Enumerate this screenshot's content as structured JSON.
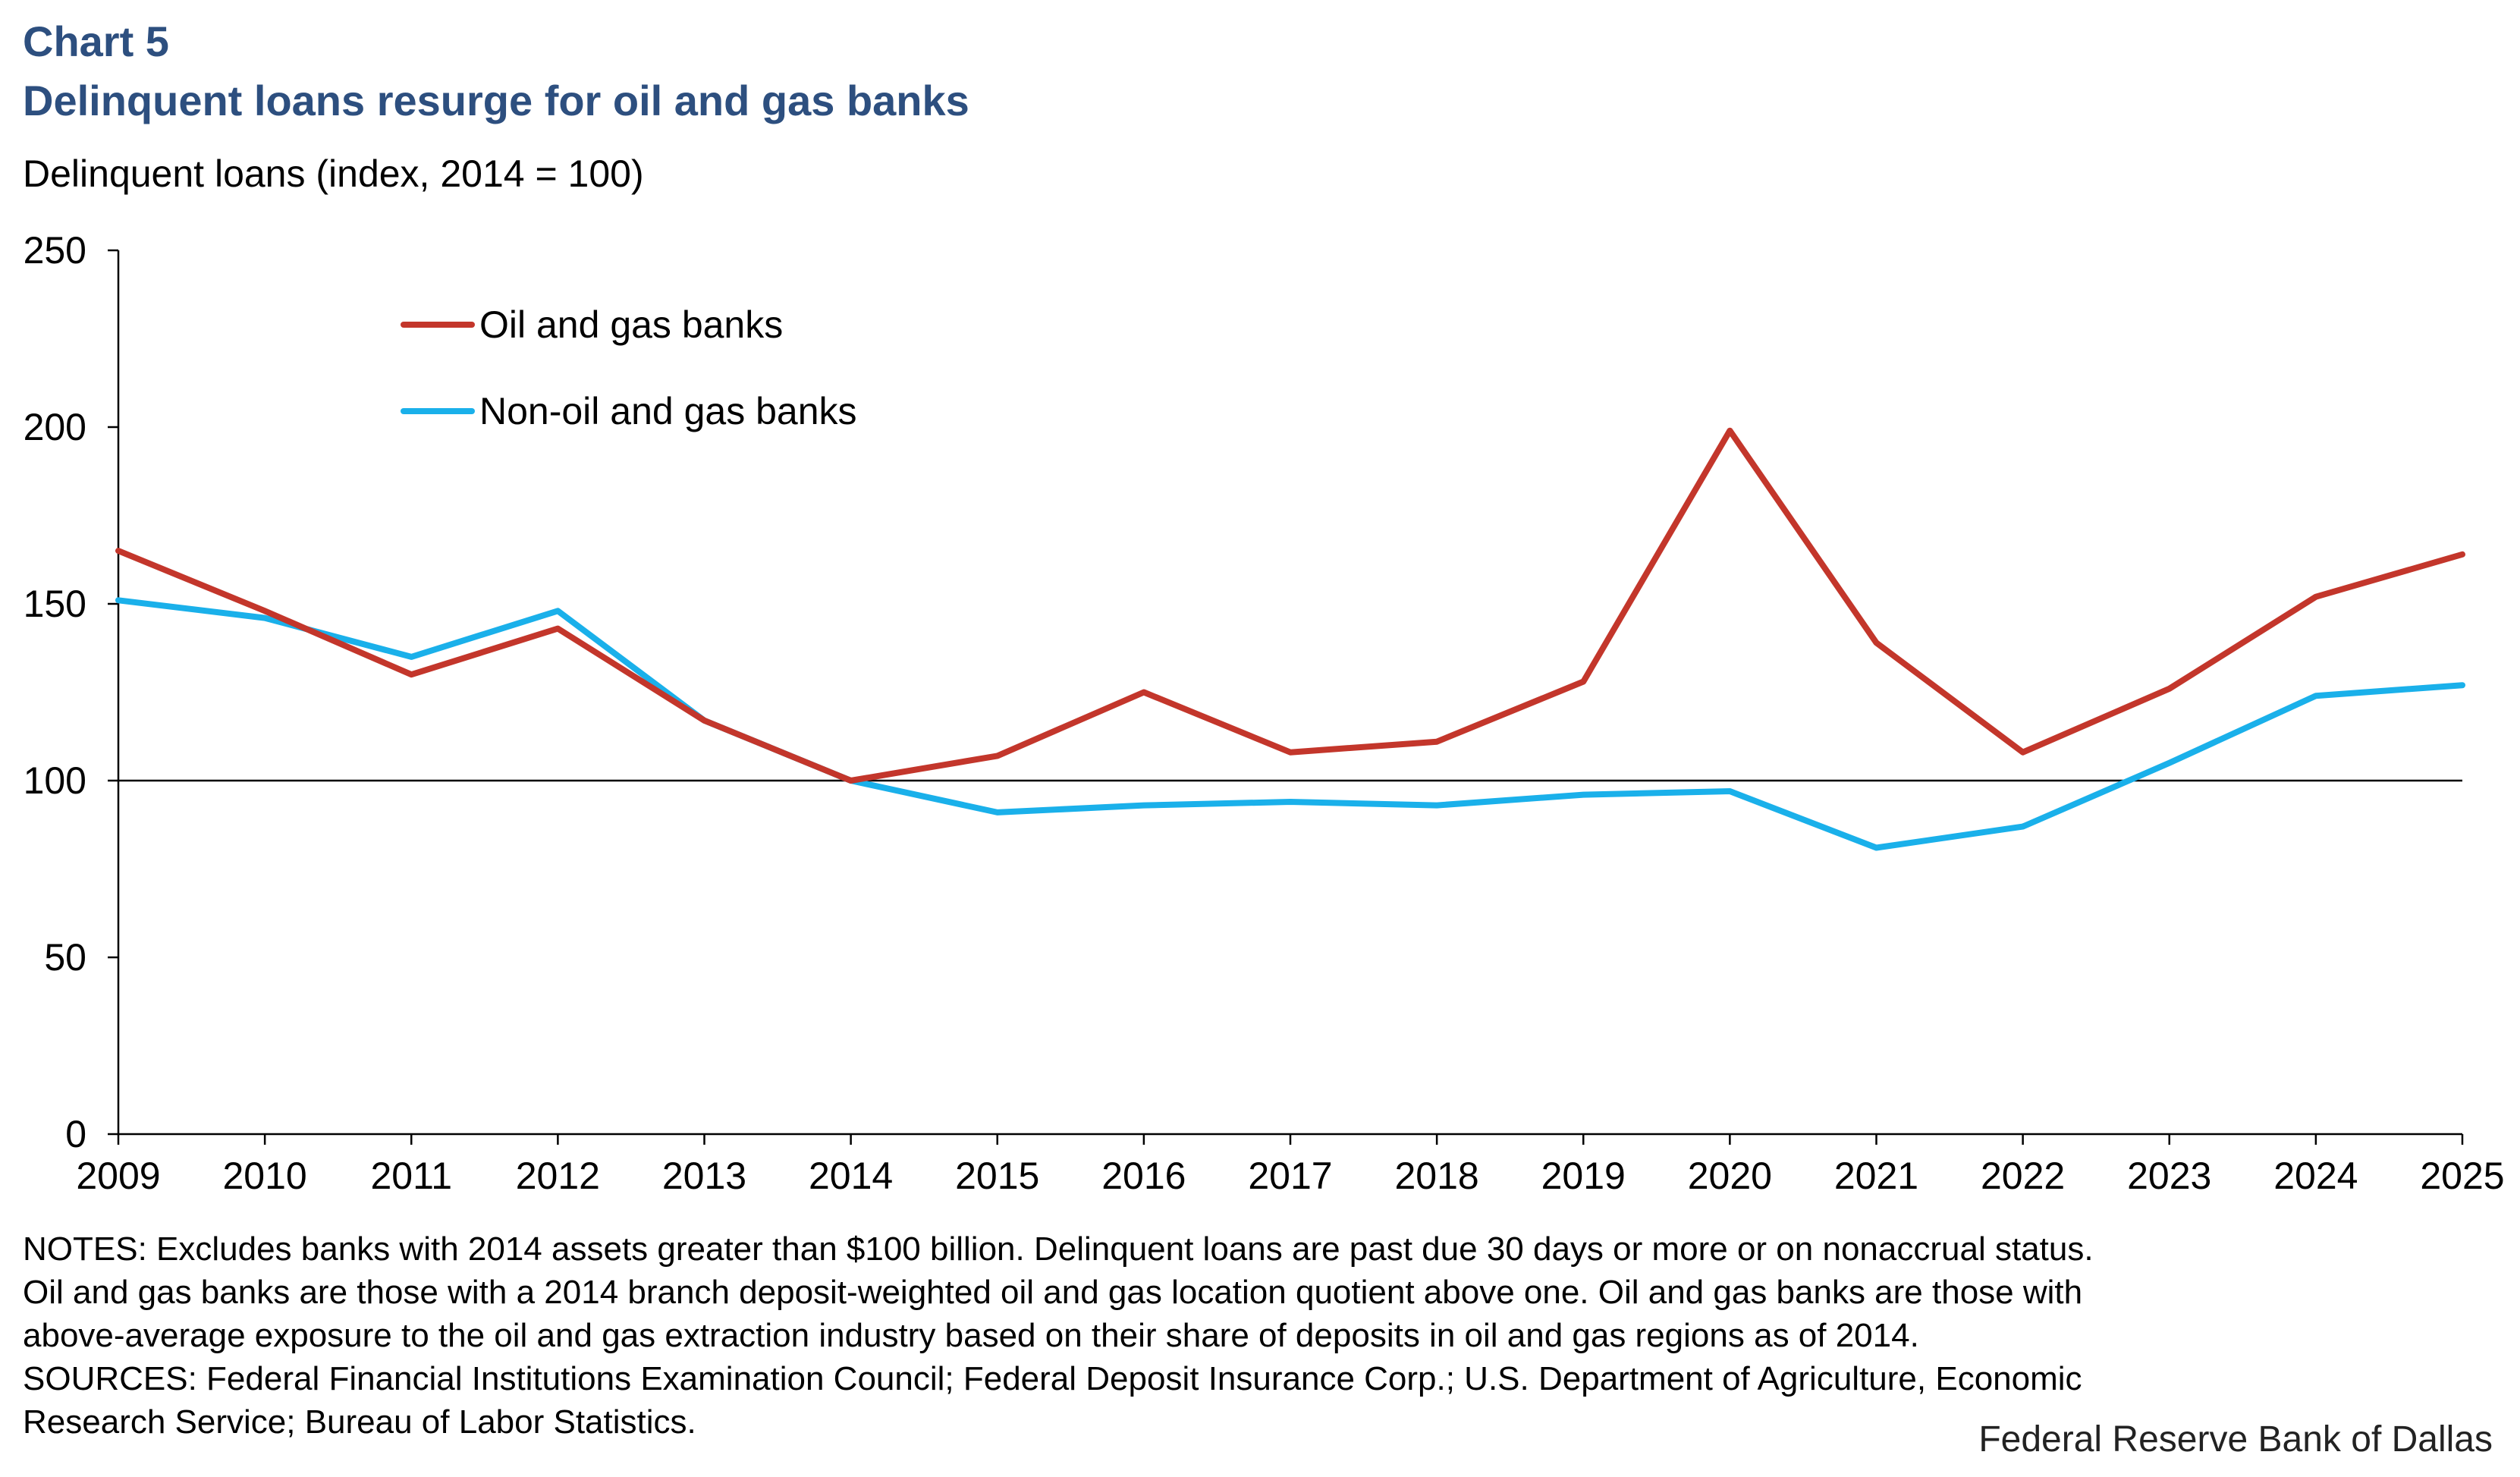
{
  "header": {
    "chart_number": "Chart 5",
    "title": "Delinquent loans resurge for oil and gas banks",
    "y_axis_title": "Delinquent loans (index, 2014 = 100)"
  },
  "chart_data": {
    "type": "line",
    "title": "Delinquent loans resurge for oil and gas banks",
    "xlabel": "",
    "ylabel": "Delinquent loans (index, 2014 = 100)",
    "ylim": [
      0,
      250
    ],
    "y_ticks": [
      0,
      50,
      100,
      150,
      200,
      250
    ],
    "x": [
      "2009",
      "2010",
      "2011",
      "2012",
      "2013",
      "2014",
      "2015",
      "2016",
      "2017",
      "2018",
      "2019",
      "2020",
      "2021",
      "2022",
      "2023",
      "2024",
      "2025"
    ],
    "reference_line": 100,
    "legend_position": "top-left",
    "series": [
      {
        "name": "Oil and gas banks",
        "color": "#c3362b",
        "values": [
          165,
          148,
          130,
          143,
          117,
          100,
          107,
          125,
          108,
          111,
          128,
          199,
          139,
          108,
          126,
          152,
          164
        ]
      },
      {
        "name": "Non-oil and gas banks",
        "color": "#1ab0ea",
        "values": [
          151,
          146,
          135,
          148,
          117,
          100,
          91,
          93,
          94,
          93,
          96,
          97,
          81,
          87,
          105,
          124,
          127
        ]
      }
    ]
  },
  "notes": {
    "line1": "NOTES: Excludes banks with 2014 assets greater than $100 billion. Delinquent loans are past due 30 days or more or on nonaccrual status.",
    "line2": "Oil and gas banks are those with a 2014 branch deposit-weighted oil and gas location quotient above one. Oil and gas banks are those with",
    "line3": "above-average exposure to the oil and gas extraction industry based on their share of deposits in oil and gas regions as of 2014.",
    "line4": "SOURCES: Federal Financial Institutions Examination Council; Federal Deposit Insurance Corp.; U.S. Department of Agriculture, Economic",
    "line5": "Research Service; Bureau of Labor Statistics."
  },
  "credit": "Federal Reserve Bank of Dallas"
}
